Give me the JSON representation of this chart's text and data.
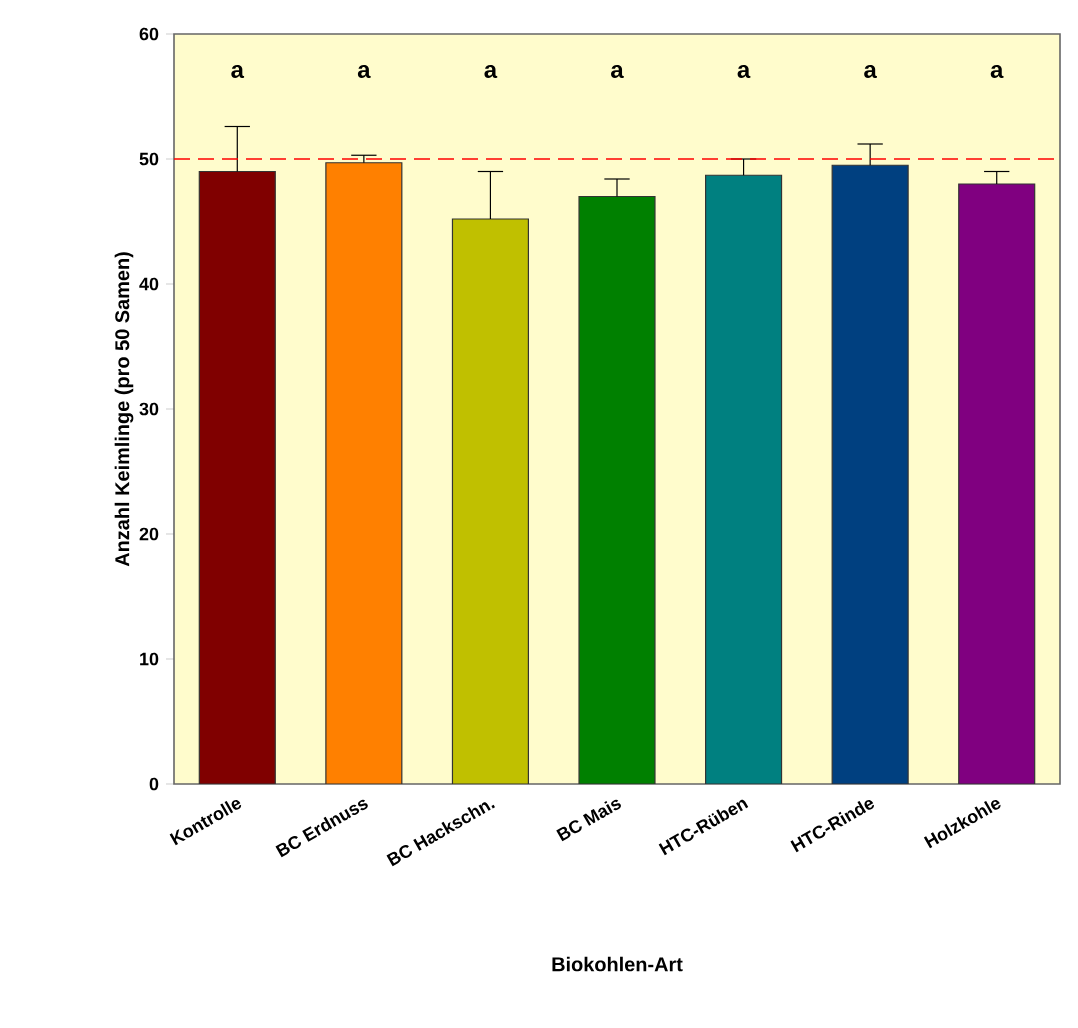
{
  "chart_data": {
    "type": "bar",
    "xlabel": "Biokohlen-Art",
    "ylabel": "Anzahl Keimlinge (pro 50 Samen)",
    "categories": [
      "Kontrolle",
      "BC Erdnuss",
      "BC Hackschn.",
      "BC Mais",
      "HTC-Rüben",
      "HTC-Rinde",
      "Holzkohle"
    ],
    "values": [
      49.0,
      49.7,
      45.2,
      47.0,
      48.7,
      49.5,
      48.0
    ],
    "colors": [
      "#800000",
      "#ff8000",
      "#c0c000",
      "#008000",
      "#008080",
      "#004080",
      "#800080"
    ],
    "errors": [
      [
        49.0,
        52.6
      ],
      [
        49.7,
        50.3
      ],
      [
        45.2,
        49.0
      ],
      [
        47.0,
        48.4
      ],
      [
        48.7,
        50.0
      ],
      [
        49.5,
        51.2
      ],
      [
        48.0,
        49.0
      ]
    ],
    "ylim": [
      0,
      60
    ],
    "yticks": [
      0,
      10,
      20,
      30,
      40,
      50,
      60
    ],
    "grid": false,
    "ref_lines": [
      {
        "axis": "y",
        "value": 50,
        "color": "#ff0000",
        "line_style": "dashed"
      }
    ],
    "annotations": [
      "a",
      "a",
      "a",
      "a",
      "a",
      "a",
      "a"
    ]
  }
}
